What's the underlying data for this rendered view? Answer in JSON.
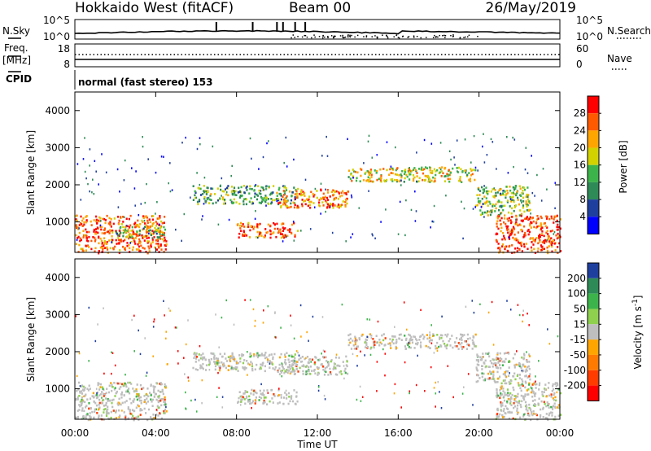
{
  "header": {
    "title": "Hokkaido West (fitACF)",
    "beam": "Beam 00",
    "date": "26/May/2019"
  },
  "noise_panel": {
    "left_label": "N.Sky",
    "right_label": "N.Search",
    "yticks_left": [
      "10^5",
      "10^0"
    ],
    "yticks_right": [
      "10^5",
      "10^0"
    ]
  },
  "freq_panel": {
    "left_label_line1": "Freq.",
    "left_label_line2": "[MHz]",
    "right_label": "Nave",
    "yticks_left": [
      "18",
      "8"
    ],
    "yticks_right": [
      "60",
      "0"
    ]
  },
  "cpid_panel": {
    "label": "CPID",
    "mode_text": "normal (fast stereo) 153"
  },
  "x_axis": {
    "ticks": [
      "00:00",
      "04:00",
      "08:00",
      "12:00",
      "16:00",
      "20:00",
      "00:00"
    ],
    "label": "Time UT"
  },
  "chart_data": [
    {
      "type": "heatmap",
      "name": "power",
      "ylabel": "Slant Range [km]",
      "ylim": [
        180,
        4500
      ],
      "yticks": [
        "1000",
        "2000",
        "3000",
        "4000"
      ],
      "xlim_hours": [
        0,
        24
      ],
      "colorbar": {
        "label": "Power [dB]",
        "ticks": [
          "28",
          "24",
          "20",
          "16",
          "12",
          "8",
          "4"
        ],
        "colors": [
          "#ff0000",
          "#ff5a00",
          "#ffa500",
          "#d2d200",
          "#3cb44b",
          "#2e8b57",
          "#1f3f9f",
          "#0000ff"
        ]
      },
      "echo_bands": [
        {
          "start_hour": 0.0,
          "end_hour": 4.5,
          "range_low_km": 180,
          "range_high_km": 1200,
          "power_db": 26
        },
        {
          "start_hour": 2.0,
          "end_hour": 4.5,
          "range_low_km": 600,
          "range_high_km": 900,
          "power_db": 14
        },
        {
          "start_hour": 5.8,
          "end_hour": 11.0,
          "range_low_km": 1500,
          "range_high_km": 2000,
          "power_db": 12
        },
        {
          "start_hour": 8.0,
          "end_hour": 11.0,
          "range_low_km": 600,
          "range_high_km": 1000,
          "power_db": 26
        },
        {
          "start_hour": 10.0,
          "end_hour": 13.5,
          "range_low_km": 1400,
          "range_high_km": 1900,
          "power_db": 24
        },
        {
          "start_hour": 13.5,
          "end_hour": 19.8,
          "range_low_km": 2100,
          "range_high_km": 2500,
          "power_db": 18
        },
        {
          "start_hour": 19.8,
          "end_hour": 22.5,
          "range_low_km": 1200,
          "range_high_km": 2000,
          "power_db": 14
        },
        {
          "start_hour": 20.8,
          "end_hour": 24.0,
          "range_low_km": 180,
          "range_high_km": 1200,
          "power_db": 28
        }
      ]
    },
    {
      "type": "heatmap",
      "name": "velocity",
      "ylabel": "Slant Range [km]",
      "ylim": [
        180,
        4500
      ],
      "yticks": [
        "1000",
        "2000",
        "3000",
        "4000"
      ],
      "xlim_hours": [
        0,
        24
      ],
      "colorbar": {
        "label": "Velocity [m s^-1]",
        "ticks": [
          "200",
          "100",
          "50",
          "15",
          "-15",
          "-50",
          "-100",
          "-200"
        ],
        "colors": [
          "#1f3f9f",
          "#2e8b57",
          "#3cb44b",
          "#8fd14f",
          "#bebebe",
          "#ffa500",
          "#ff7a00",
          "#ff3b00",
          "#ff0000"
        ]
      },
      "ground_scatter_color": "#bebebe",
      "echo_bands": [
        {
          "start_hour": 0.0,
          "end_hour": 4.5,
          "range_low_km": 180,
          "range_high_km": 1200,
          "velocity_ms": 0
        },
        {
          "start_hour": 5.8,
          "end_hour": 11.0,
          "range_low_km": 1500,
          "range_high_km": 2000,
          "velocity_ms": 0
        },
        {
          "start_hour": 8.0,
          "end_hour": 11.0,
          "range_low_km": 600,
          "range_high_km": 1000,
          "velocity_ms": 0
        },
        {
          "start_hour": 10.0,
          "end_hour": 13.5,
          "range_low_km": 1400,
          "range_high_km": 1900,
          "velocity_ms": 0
        },
        {
          "start_hour": 13.5,
          "end_hour": 19.8,
          "range_low_km": 2100,
          "range_high_km": 2500,
          "velocity_ms": 0
        },
        {
          "start_hour": 19.8,
          "end_hour": 22.5,
          "range_low_km": 1200,
          "range_high_km": 2000,
          "velocity_ms": 0
        },
        {
          "start_hour": 20.8,
          "end_hour": 24.0,
          "range_low_km": 180,
          "range_high_km": 1200,
          "velocity_ms": 0
        }
      ]
    }
  ]
}
